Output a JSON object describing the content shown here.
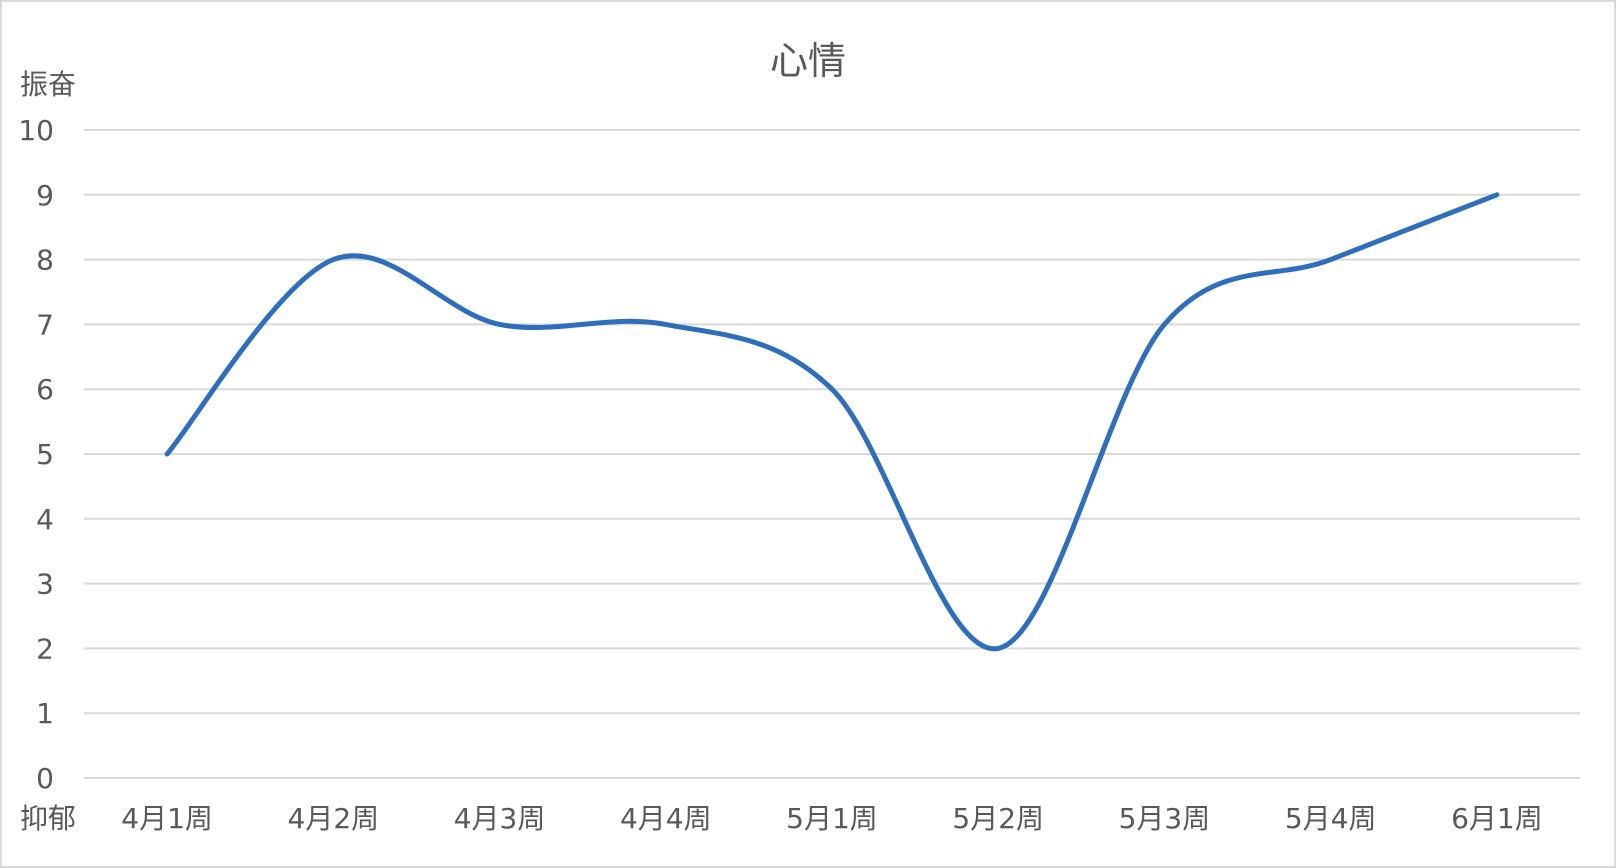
{
  "chart_data": {
    "type": "line",
    "title": "心情",
    "ylabel_top": "振奋",
    "ylabel_bottom": "抑郁",
    "categories": [
      "4月1周",
      "4月2周",
      "4月3周",
      "4月4周",
      "5月1周",
      "5月2周",
      "5月3周",
      "5月4周",
      "6月1周"
    ],
    "series": [
      {
        "values": [
          5,
          8,
          7,
          7,
          6,
          2,
          7,
          8,
          9
        ]
      }
    ],
    "ylim": [
      0,
      10
    ],
    "yticks": [
      0,
      1,
      2,
      3,
      4,
      5,
      6,
      7,
      8,
      9,
      10
    ],
    "grid": true,
    "smooth": true,
    "legend": "none",
    "colors": {
      "line": "#2e6ebd",
      "grid": "#d9d9d9",
      "text": "#595959",
      "border": "#d9d9d9"
    }
  }
}
